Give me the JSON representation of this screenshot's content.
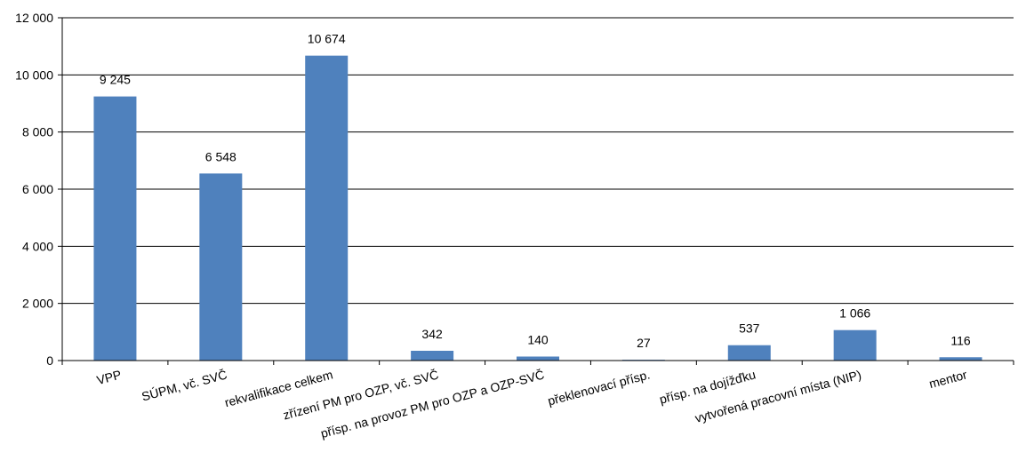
{
  "chart_data": {
    "type": "bar",
    "categories": [
      "VPP",
      "SÚPM, vč. SVČ",
      "rekvalifikace celkem",
      "zřízení PM pro OZP, vč. SVČ",
      "přísp. na provoz PM pro OZP a OZP-SVČ",
      "překlenovací přísp.",
      "přísp. na dojížďku",
      "vytvořená pracovní místa (NIP)",
      "mentor"
    ],
    "values": [
      9245,
      6548,
      10674,
      342,
      140,
      27,
      537,
      1066,
      116
    ],
    "value_labels": [
      "9 245",
      "6 548",
      "10 674",
      "342",
      "140",
      "27",
      "537",
      "1 066",
      "116"
    ],
    "ylim": [
      0,
      12000
    ],
    "yticks": [
      0,
      2000,
      4000,
      6000,
      8000,
      10000,
      12000
    ],
    "ytick_labels": [
      "0",
      "2 000",
      "4 000",
      "6 000",
      "8 000",
      "10 000",
      "12 000"
    ],
    "grid": true,
    "bar_color": "#4f81bd"
  }
}
